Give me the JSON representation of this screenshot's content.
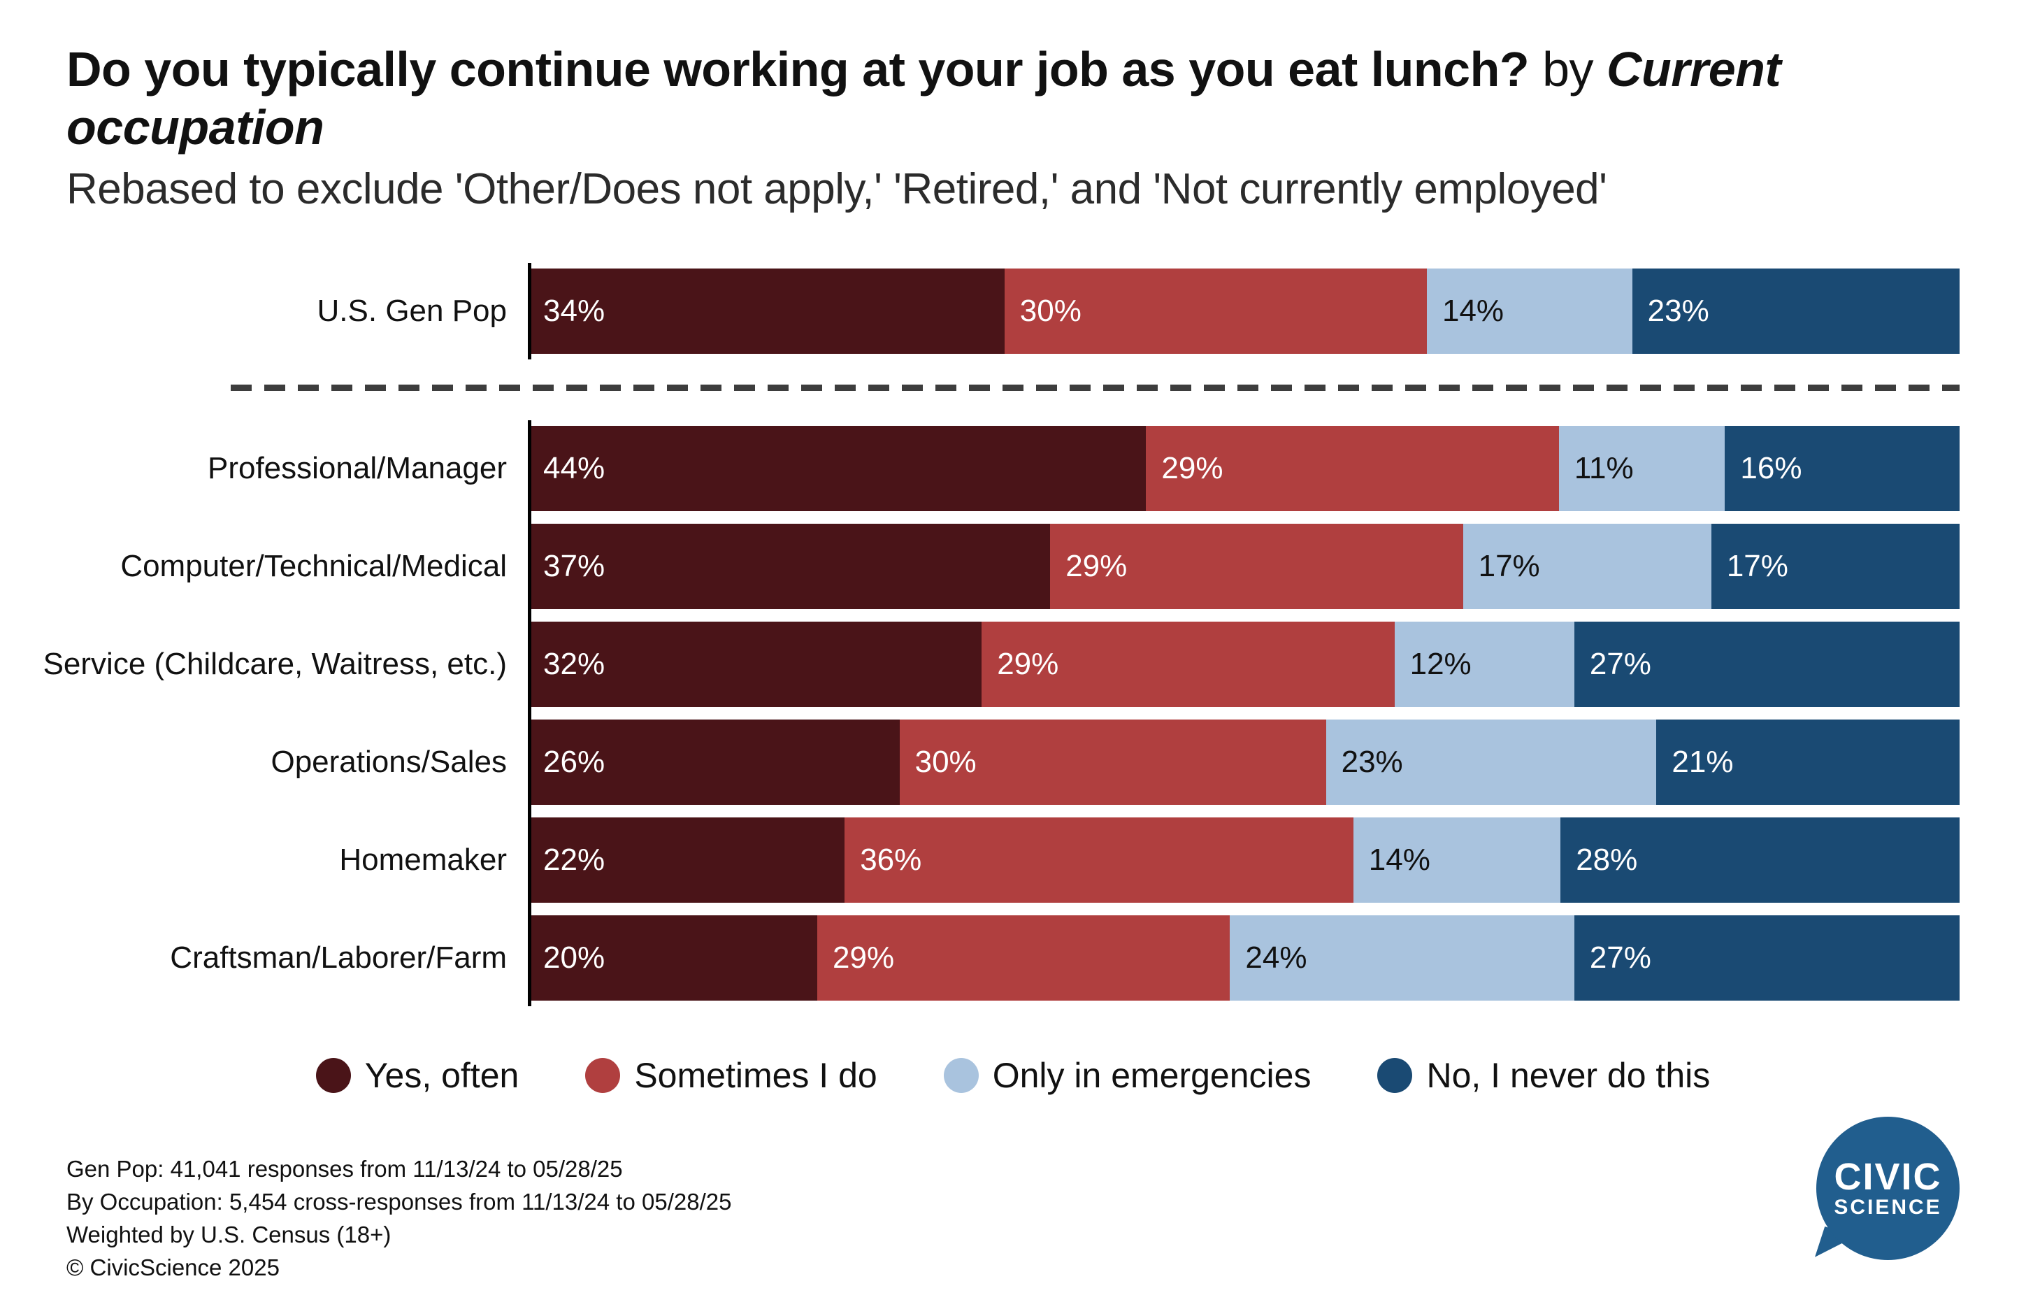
{
  "title": {
    "main": "Do you typically continue working at your job as you eat lunch?",
    "by": " by ",
    "emphasis": "Current occupation",
    "subtitle": "Rebased to exclude 'Other/Does not apply,' 'Retired,' and 'Not currently employed'"
  },
  "chart_data": {
    "type": "bar",
    "orientation": "horizontal",
    "stacked": true,
    "unit": "%",
    "xlim": [
      0,
      100
    ],
    "legend_position": "bottom",
    "series_names": [
      "Yes, often",
      "Sometimes I do",
      "Only in emergencies",
      "No, I never do this"
    ],
    "series_colors": [
      "#4a1418",
      "#b03f3f",
      "#a9c3de",
      "#1a4a73"
    ],
    "label_text_colors": [
      "#ffffff",
      "#ffffff",
      "#111111",
      "#ffffff"
    ],
    "benchmark_row": {
      "label": "U.S. Gen Pop",
      "values": [
        34,
        30,
        14,
        23
      ]
    },
    "rows": [
      {
        "label": "Professional/Manager",
        "values": [
          44,
          29,
          11,
          16
        ]
      },
      {
        "label": "Computer/Technical/Medical",
        "values": [
          37,
          29,
          17,
          17
        ]
      },
      {
        "label": "Service (Childcare, Waitress, etc.)",
        "values": [
          32,
          29,
          12,
          27
        ]
      },
      {
        "label": "Operations/Sales",
        "values": [
          26,
          30,
          23,
          21
        ]
      },
      {
        "label": "Homemaker",
        "values": [
          22,
          36,
          14,
          28
        ]
      },
      {
        "label": "Craftsman/Laborer/Farm",
        "values": [
          20,
          29,
          24,
          27
        ]
      }
    ],
    "legend": [
      "Yes, often",
      "Sometimes I do",
      "Only in emergencies",
      "No, I never do this"
    ]
  },
  "footer": {
    "lines": [
      "Gen Pop: 41,041 responses from 11/13/24 to 05/28/25",
      "By Occupation: 5,454 cross-responses from 11/13/24 to 05/28/25",
      "Weighted by U.S. Census (18+)",
      "© CivicScience 2025"
    ]
  },
  "logo": {
    "line1": "CIVIC",
    "line2": "SCIENCE",
    "color": "#215e8e"
  }
}
